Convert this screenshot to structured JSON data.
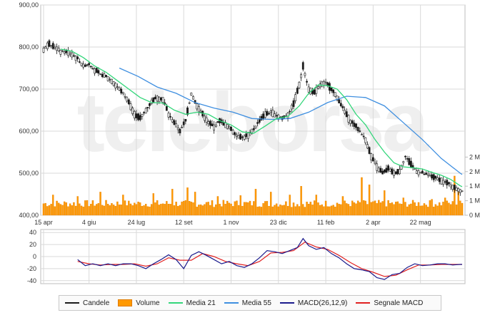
{
  "colors": {
    "candle": "#1a1a1a",
    "volume": "#ff9900",
    "volume_edge": "#e07b00",
    "ma21": "#33d67a",
    "ma55": "#3f8fe0",
    "macd": "#1a1a8c",
    "signal": "#e02020",
    "grid": "#d9d9d9",
    "watermark": "#efefef"
  },
  "watermark_text": "teleborsa",
  "chart_data": [
    {
      "type": "candlestick",
      "title": "",
      "xlabel": "",
      "ylabel": "",
      "ylim": [
        400,
        900
      ],
      "y_ticks": [
        "900,00",
        "800,00",
        "700,00",
        "600,00",
        "500,00",
        "400,00"
      ],
      "x_ticks": [
        "15 apr",
        "4 giu",
        "24 lug",
        "12 set",
        "1 nov",
        "23 dic",
        "11 feb",
        "2 apr",
        "22 mag"
      ],
      "grid": true,
      "price_path": [
        [
          0,
          795
        ],
        [
          3,
          808
        ],
        [
          6,
          800
        ],
        [
          9,
          790
        ],
        [
          12,
          788
        ],
        [
          15,
          783
        ],
        [
          18,
          772
        ],
        [
          21,
          755
        ],
        [
          24,
          760
        ],
        [
          27,
          745
        ],
        [
          30,
          735
        ],
        [
          33,
          730
        ],
        [
          36,
          720
        ],
        [
          39,
          705
        ],
        [
          42,
          690
        ],
        [
          45,
          670
        ],
        [
          48,
          640
        ],
        [
          51,
          630
        ],
        [
          54,
          650
        ],
        [
          57,
          670
        ],
        [
          60,
          680
        ],
        [
          63,
          676
        ],
        [
          66,
          640
        ],
        [
          69,
          620
        ],
        [
          72,
          600
        ],
        [
          75,
          625
        ],
        [
          78,
          690
        ],
        [
          81,
          660
        ],
        [
          84,
          640
        ],
        [
          87,
          620
        ],
        [
          90,
          610
        ],
        [
          93,
          625
        ],
        [
          96,
          615
        ],
        [
          99,
          605
        ],
        [
          102,
          590
        ],
        [
          105,
          585
        ],
        [
          108,
          590
        ],
        [
          111,
          605
        ],
        [
          114,
          625
        ],
        [
          117,
          640
        ],
        [
          120,
          645
        ],
        [
          123,
          638
        ],
        [
          126,
          630
        ],
        [
          129,
          640
        ],
        [
          132,
          665
        ],
        [
          135,
          710
        ],
        [
          137,
          755
        ],
        [
          140,
          700
        ],
        [
          143,
          690
        ],
        [
          146,
          710
        ],
        [
          149,
          715
        ],
        [
          152,
          700
        ],
        [
          155,
          680
        ],
        [
          158,
          655
        ],
        [
          161,
          630
        ],
        [
          164,
          615
        ],
        [
          167,
          600
        ],
        [
          170,
          580
        ],
        [
          173,
          540
        ],
        [
          176,
          515
        ],
        [
          179,
          500
        ],
        [
          182,
          510
        ],
        [
          185,
          500
        ],
        [
          188,
          505
        ],
        [
          191,
          540
        ],
        [
          194,
          520
        ],
        [
          197,
          505
        ],
        [
          200,
          500
        ],
        [
          203,
          495
        ],
        [
          206,
          490
        ],
        [
          209,
          485
        ],
        [
          212,
          478
        ],
        [
          215,
          472
        ],
        [
          218,
          462
        ],
        [
          221,
          458
        ]
      ],
      "ma21": [
        [
          9,
          795
        ],
        [
          15,
          790
        ],
        [
          21,
          775
        ],
        [
          27,
          755
        ],
        [
          33,
          740
        ],
        [
          39,
          720
        ],
        [
          45,
          700
        ],
        [
          51,
          680
        ],
        [
          57,
          668
        ],
        [
          63,
          667
        ],
        [
          69,
          650
        ],
        [
          75,
          640
        ],
        [
          81,
          645
        ],
        [
          87,
          640
        ],
        [
          93,
          625
        ],
        [
          99,
          615
        ],
        [
          105,
          598
        ],
        [
          111,
          595
        ],
        [
          117,
          612
        ],
        [
          123,
          630
        ],
        [
          129,
          635
        ],
        [
          135,
          660
        ],
        [
          140,
          690
        ],
        [
          145,
          710
        ],
        [
          150,
          708
        ],
        [
          155,
          700
        ],
        [
          160,
          675
        ],
        [
          165,
          640
        ],
        [
          170,
          615
        ],
        [
          175,
          580
        ],
        [
          180,
          550
        ],
        [
          185,
          525
        ],
        [
          190,
          515
        ],
        [
          195,
          513
        ],
        [
          200,
          510
        ],
        [
          205,
          502
        ],
        [
          210,
          495
        ],
        [
          215,
          485
        ],
        [
          220,
          470
        ],
        [
          221,
          468
        ]
      ],
      "ma55": [
        [
          40,
          750
        ],
        [
          50,
          730
        ],
        [
          60,
          705
        ],
        [
          70,
          690
        ],
        [
          80,
          668
        ],
        [
          90,
          655
        ],
        [
          100,
          645
        ],
        [
          110,
          630
        ],
        [
          120,
          628
        ],
        [
          130,
          630
        ],
        [
          140,
          645
        ],
        [
          150,
          668
        ],
        [
          160,
          683
        ],
        [
          170,
          680
        ],
        [
          180,
          660
        ],
        [
          190,
          620
        ],
        [
          200,
          580
        ],
        [
          210,
          535
        ],
        [
          220,
          500
        ],
        [
          221,
          497
        ]
      ]
    },
    {
      "type": "bar",
      "title": "Volume",
      "ylim": [
        0,
        2500000
      ],
      "y_ticks": [
        "2 M",
        "2 M",
        "1 M",
        "1 M",
        "0 M"
      ],
      "y_tick_values": [
        2000000,
        1500000,
        1000000,
        500000,
        0
      ],
      "spikes": [
        [
          5,
          700000
        ],
        [
          18,
          650000
        ],
        [
          30,
          800000
        ],
        [
          42,
          700000
        ],
        [
          58,
          750000
        ],
        [
          68,
          900000
        ],
        [
          76,
          950000
        ],
        [
          80,
          800000
        ],
        [
          92,
          650000
        ],
        [
          104,
          680000
        ],
        [
          112,
          900000
        ],
        [
          120,
          800000
        ],
        [
          130,
          700000
        ],
        [
          136,
          1000000
        ],
        [
          144,
          700000
        ],
        [
          158,
          650000
        ],
        [
          168,
          1300000
        ],
        [
          172,
          1050000
        ],
        [
          180,
          850000
        ],
        [
          190,
          600000
        ],
        [
          205,
          550000
        ],
        [
          212,
          600000
        ],
        [
          217,
          1350000
        ],
        [
          219,
          850000
        ]
      ],
      "baseline_low": 280000,
      "baseline_high": 520000
    },
    {
      "type": "line",
      "title": "MACD(26,12,9)",
      "ylim": [
        -45,
        45
      ],
      "y_ticks": [
        "40",
        "20",
        "0",
        "-20",
        "-40"
      ],
      "y_tick_values": [
        40,
        20,
        0,
        -20,
        -40
      ],
      "macd": [
        [
          18,
          -5
        ],
        [
          22,
          -15
        ],
        [
          26,
          -12
        ],
        [
          30,
          -15
        ],
        [
          34,
          -12
        ],
        [
          38,
          -15
        ],
        [
          42,
          -12
        ],
        [
          46,
          -12
        ],
        [
          50,
          -15
        ],
        [
          54,
          -20
        ],
        [
          58,
          -12
        ],
        [
          62,
          -5
        ],
        [
          66,
          3
        ],
        [
          70,
          -5
        ],
        [
          74,
          -20
        ],
        [
          78,
          2
        ],
        [
          82,
          8
        ],
        [
          86,
          2
        ],
        [
          90,
          -5
        ],
        [
          94,
          -12
        ],
        [
          98,
          -8
        ],
        [
          102,
          -15
        ],
        [
          106,
          -18
        ],
        [
          110,
          -12
        ],
        [
          114,
          -2
        ],
        [
          118,
          10
        ],
        [
          122,
          8
        ],
        [
          126,
          5
        ],
        [
          130,
          10
        ],
        [
          134,
          15
        ],
        [
          137,
          30
        ],
        [
          140,
          18
        ],
        [
          144,
          12
        ],
        [
          148,
          15
        ],
        [
          152,
          5
        ],
        [
          156,
          -2
        ],
        [
          160,
          -12
        ],
        [
          164,
          -20
        ],
        [
          168,
          -22
        ],
        [
          172,
          -25
        ],
        [
          176,
          -35
        ],
        [
          180,
          -38
        ],
        [
          184,
          -30
        ],
        [
          188,
          -28
        ],
        [
          192,
          -18
        ],
        [
          196,
          -12
        ],
        [
          200,
          -15
        ],
        [
          204,
          -14
        ],
        [
          208,
          -12
        ],
        [
          212,
          -12
        ],
        [
          216,
          -14
        ],
        [
          220,
          -13
        ],
        [
          221,
          -13
        ]
      ],
      "signal": [
        [
          18,
          -8
        ],
        [
          24,
          -12
        ],
        [
          30,
          -14
        ],
        [
          36,
          -13
        ],
        [
          42,
          -13
        ],
        [
          48,
          -12
        ],
        [
          54,
          -16
        ],
        [
          60,
          -12
        ],
        [
          66,
          -2
        ],
        [
          72,
          -6
        ],
        [
          78,
          -6
        ],
        [
          84,
          5
        ],
        [
          90,
          0
        ],
        [
          96,
          -8
        ],
        [
          102,
          -12
        ],
        [
          108,
          -15
        ],
        [
          114,
          -8
        ],
        [
          120,
          6
        ],
        [
          126,
          7
        ],
        [
          132,
          10
        ],
        [
          138,
          24
        ],
        [
          144,
          16
        ],
        [
          150,
          12
        ],
        [
          156,
          2
        ],
        [
          162,
          -10
        ],
        [
          168,
          -20
        ],
        [
          174,
          -26
        ],
        [
          180,
          -33
        ],
        [
          186,
          -31
        ],
        [
          192,
          -22
        ],
        [
          198,
          -14
        ],
        [
          204,
          -14
        ],
        [
          210,
          -13
        ],
        [
          216,
          -13
        ],
        [
          220,
          -13
        ],
        [
          221,
          -13
        ]
      ]
    }
  ],
  "legend": [
    {
      "label": "Candele",
      "kind": "line",
      "color": "#1a1a1a"
    },
    {
      "label": "Volume",
      "kind": "bar",
      "color": "#ff9900"
    },
    {
      "label": "Media 21",
      "kind": "line",
      "color": "#33d67a"
    },
    {
      "label": "Media 55",
      "kind": "line",
      "color": "#3f8fe0"
    },
    {
      "label": "MACD(26,12,9)",
      "kind": "line",
      "color": "#1a1a8c"
    },
    {
      "label": "Segnale MACD",
      "kind": "line",
      "color": "#e02020"
    }
  ]
}
